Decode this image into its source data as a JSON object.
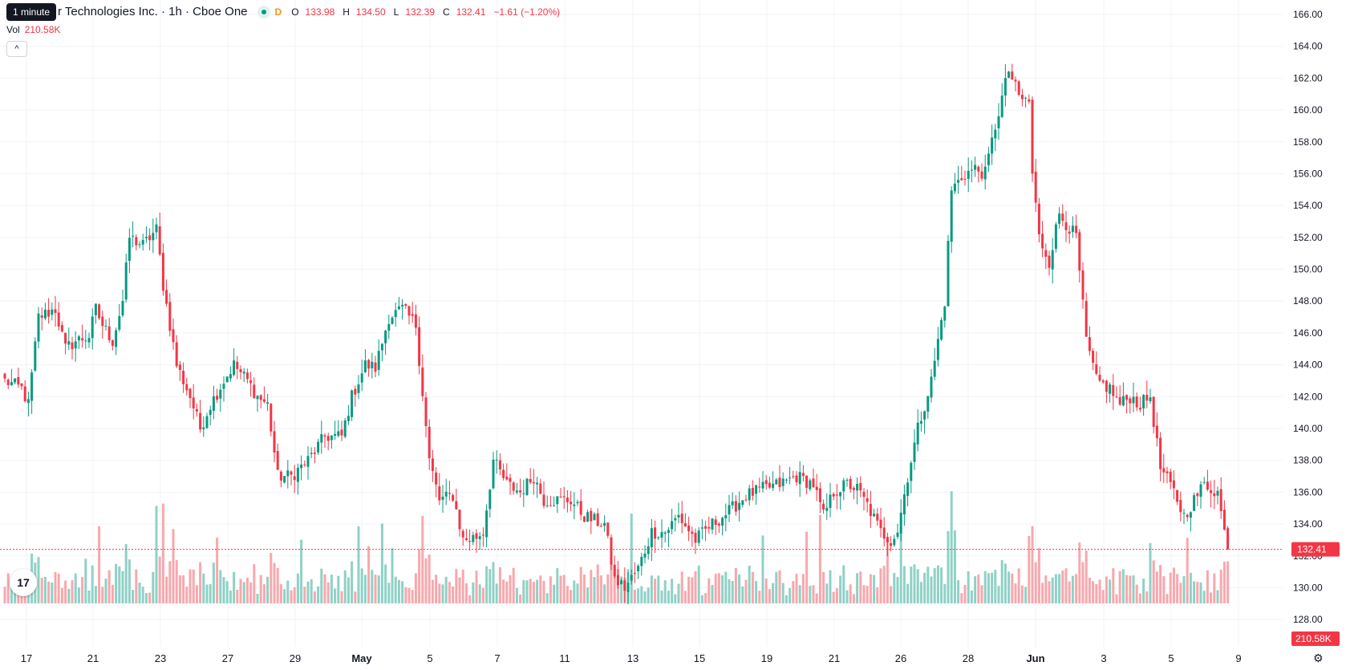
{
  "header": {
    "tooltip": "1 minute",
    "title": "r Technologies Inc. · 1h · Cboe One",
    "d_badge": "D",
    "o_label": "O",
    "o_value": "133.98",
    "h_label": "H",
    "h_value": "134.50",
    "l_label": "L",
    "l_value": "132.39",
    "c_label": "C",
    "c_value": "132.41",
    "change": "−1.61 (−1.20%)"
  },
  "volume_legend": {
    "label": "Vol",
    "value": "210.58K"
  },
  "last_price_label": "132.41",
  "last_volume_label": "210.58K",
  "icons": {
    "logo": "tradingview-logo-icon",
    "settings": "settings-icon",
    "collapse": "chevron-up-icon"
  },
  "colors": {
    "up": "#089981",
    "down": "#f23645",
    "up_vol": "#8fd1c6",
    "down_vol": "#f7a8ad",
    "grid": "#f0f3fa"
  },
  "chart_data": {
    "type": "candlestick",
    "y_axis": {
      "min": 127,
      "max": 166,
      "ticks": [
        "128.00",
        "130.00",
        "132.00",
        "134.00",
        "136.00",
        "138.00",
        "140.00",
        "142.00",
        "144.00",
        "146.00",
        "148.00",
        "150.00",
        "152.00",
        "154.00",
        "156.00",
        "158.00",
        "160.00",
        "162.00",
        "164.00",
        "166.00"
      ]
    },
    "x_ticks": [
      "17",
      "21",
      "23",
      "27",
      "29",
      "May",
      "5",
      "7",
      "11",
      "13",
      "15",
      "19",
      "21",
      "26",
      "28",
      "Jun",
      "3",
      "5",
      "9"
    ],
    "last_price": 132.41,
    "grid": true,
    "close_path": [
      [
        0,
        143
      ],
      [
        5,
        142.5
      ],
      [
        7,
        141.5
      ],
      [
        10,
        147
      ],
      [
        15,
        147.5
      ],
      [
        18,
        145
      ],
      [
        21,
        145.5
      ],
      [
        25,
        145.8
      ],
      [
        27,
        147.5
      ],
      [
        29,
        146.5
      ],
      [
        32,
        145.5
      ],
      [
        35,
        148
      ],
      [
        37,
        152
      ],
      [
        41,
        151.5
      ],
      [
        45,
        152.5
      ],
      [
        47,
        149
      ],
      [
        51,
        144
      ],
      [
        55,
        142
      ],
      [
        58,
        140
      ],
      [
        61,
        141.5
      ],
      [
        65,
        143
      ],
      [
        68,
        144
      ],
      [
        72,
        143
      ],
      [
        75,
        142
      ],
      [
        78,
        141.5
      ],
      [
        81,
        137
      ],
      [
        85,
        137
      ],
      [
        90,
        138
      ],
      [
        95,
        139.5
      ],
      [
        100,
        139.5
      ],
      [
        103,
        142
      ],
      [
        107,
        144
      ],
      [
        110,
        143.8
      ],
      [
        114,
        147
      ],
      [
        118,
        147.5
      ],
      [
        122,
        146.5
      ],
      [
        126,
        138
      ],
      [
        129,
        135.5
      ],
      [
        133,
        135.8
      ],
      [
        136,
        133
      ],
      [
        140,
        133.2
      ],
      [
        142,
        133.5
      ],
      [
        145,
        138
      ],
      [
        149,
        136.5
      ],
      [
        153,
        136
      ],
      [
        157,
        137
      ],
      [
        160,
        135.5
      ],
      [
        164,
        135.5
      ],
      [
        168,
        135.5
      ],
      [
        172,
        134.5
      ],
      [
        175,
        134.2
      ],
      [
        178,
        134
      ],
      [
        181,
        130.5
      ],
      [
        184,
        130
      ],
      [
        188,
        131.2
      ],
      [
        192,
        133.5
      ],
      [
        196,
        133.5
      ],
      [
        200,
        134.5
      ],
      [
        205,
        133
      ],
      [
        210,
        134
      ],
      [
        215,
        134.8
      ],
      [
        220,
        135.8
      ],
      [
        225,
        136.2
      ],
      [
        230,
        136.5
      ],
      [
        235,
        137
      ],
      [
        240,
        136.5
      ],
      [
        243,
        134.5
      ],
      [
        246,
        136
      ],
      [
        250,
        136.5
      ],
      [
        253,
        136.2
      ],
      [
        256,
        135.2
      ],
      [
        260,
        133.5
      ],
      [
        263,
        133
      ],
      [
        265,
        133.6
      ],
      [
        268,
        137
      ],
      [
        271,
        140
      ],
      [
        275,
        143
      ],
      [
        279,
        148
      ],
      [
        281,
        155
      ],
      [
        285,
        156
      ],
      [
        288,
        156.3
      ],
      [
        291,
        156
      ],
      [
        294,
        159
      ],
      [
        298,
        162.5
      ],
      [
        301,
        160.8
      ],
      [
        304,
        160.5
      ],
      [
        305,
        156
      ],
      [
        307,
        152
      ],
      [
        310,
        150.5
      ],
      [
        313,
        153.5
      ],
      [
        318,
        152
      ],
      [
        321,
        145.5
      ],
      [
        324,
        143
      ],
      [
        328,
        142.5
      ],
      [
        331,
        141.5
      ],
      [
        334,
        142
      ],
      [
        337,
        141.5
      ],
      [
        340,
        142
      ],
      [
        343,
        137.5
      ],
      [
        347,
        136
      ],
      [
        350,
        134.5
      ],
      [
        353,
        135.5
      ],
      [
        356,
        136.5
      ],
      [
        360,
        136
      ],
      [
        362,
        133.5
      ],
      [
        363,
        132.41
      ]
    ]
  }
}
